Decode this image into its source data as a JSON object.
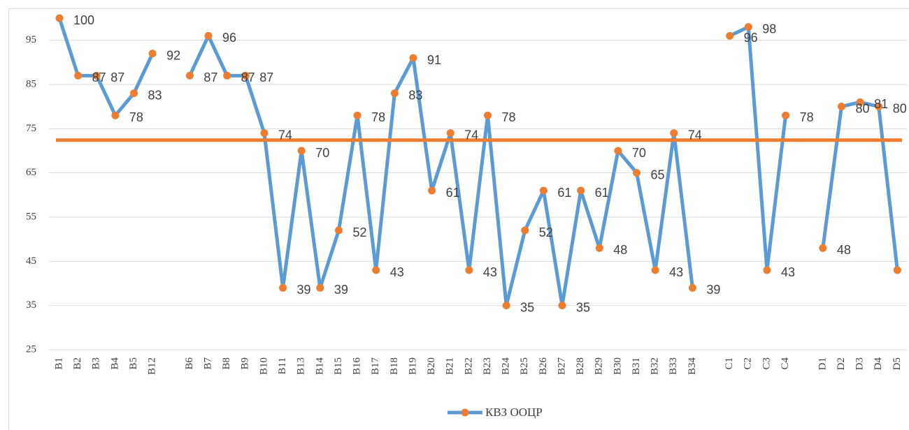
{
  "chart_data": {
    "type": "line",
    "categories": [
      "B1",
      "B2",
      "B3",
      "B4",
      "B5",
      "B12",
      null,
      "B6",
      "B7",
      "B8",
      "B9",
      "B10",
      "B11",
      "B13",
      "B14",
      "B15",
      "B16",
      "B17",
      "B18",
      "B19",
      "B20",
      "B21",
      "B22",
      "B23",
      "B24",
      "B25",
      "B26",
      "B27",
      "B28",
      "B29",
      "B30",
      "B31",
      "B32",
      "B33",
      "B34",
      null,
      "C1",
      "C2",
      "C3",
      "C4",
      null,
      "D1",
      "D2",
      "D3",
      "D4",
      "D5"
    ],
    "series": [
      {
        "name": "КВЗ ООЦР",
        "color": "#5b9bd5",
        "marker_color": "#ed7d31",
        "values": [
          100,
          87,
          87,
          78,
          83,
          92,
          null,
          87,
          96,
          87,
          87,
          74,
          39,
          70,
          39,
          52,
          78,
          43,
          83,
          91,
          61,
          74,
          43,
          78,
          35,
          52,
          61,
          35,
          61,
          48,
          70,
          65,
          43,
          74,
          39,
          null,
          96,
          98,
          43,
          78,
          null,
          48,
          80,
          81,
          80,
          43
        ]
      }
    ],
    "reference_line": {
      "value": 72.4,
      "color": "#ed7d31"
    },
    "ylim": [
      25,
      100
    ],
    "yticks": [
      25,
      35,
      45,
      55,
      65,
      75,
      85,
      95
    ],
    "grid": true,
    "legend": "bottom"
  }
}
